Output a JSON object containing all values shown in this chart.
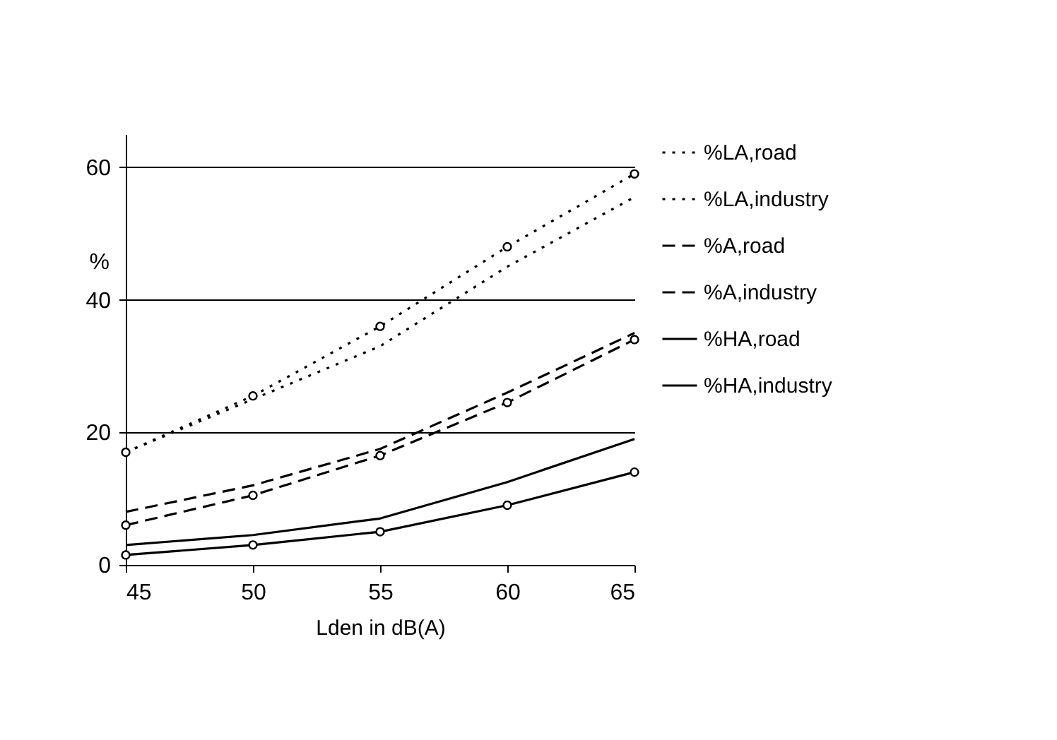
{
  "chart_data": {
    "type": "line",
    "xlabel": "Lden in dB(A)",
    "ylabel": "%",
    "x": [
      45,
      50,
      55,
      60,
      65
    ],
    "series": [
      {
        "name": "%LA,road",
        "color": "#000000",
        "line_style": "dotted",
        "marker": "circle",
        "values": [
          17,
          25.5,
          36,
          48,
          59
        ]
      },
      {
        "name": "%LA,industry",
        "color": "#000000",
        "line_style": "dotted",
        "marker": "none",
        "values": [
          17,
          25,
          33,
          45,
          55.5
        ]
      },
      {
        "name": "%A,road",
        "color": "#000000",
        "line_style": "dashed",
        "marker": "circle",
        "values": [
          6,
          10.5,
          16.5,
          24.5,
          34
        ]
      },
      {
        "name": "%A,industry",
        "color": "#000000",
        "line_style": "dashed",
        "marker": "none",
        "values": [
          8,
          12,
          17.5,
          26,
          35
        ]
      },
      {
        "name": "%HA,road",
        "color": "#000000",
        "line_style": "solid",
        "marker": "circle",
        "values": [
          1.5,
          3,
          5,
          9,
          14
        ]
      },
      {
        "name": "%HA,industry",
        "color": "#000000",
        "line_style": "solid",
        "marker": "none",
        "values": [
          3,
          4.5,
          7,
          12.5,
          19
        ]
      }
    ],
    "xlim": [
      45,
      65
    ],
    "xticks": [
      45,
      50,
      55,
      60,
      65
    ],
    "ylim": [
      0,
      65
    ],
    "yticks": [
      0,
      20,
      40,
      60
    ],
    "grid": "y",
    "legend": "right"
  }
}
